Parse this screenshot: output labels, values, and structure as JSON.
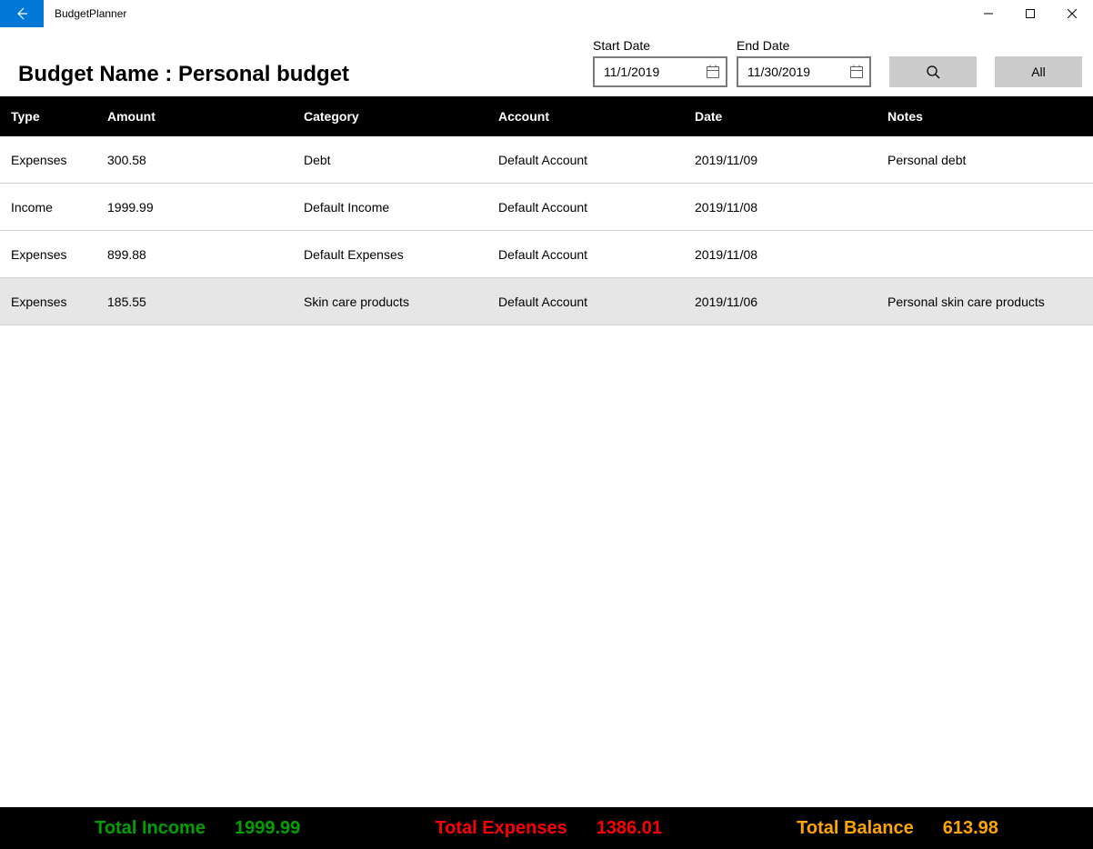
{
  "window": {
    "app_title": "BudgetPlanner"
  },
  "header": {
    "budget_name_prefix": "Budget Name : ",
    "budget_name": "Personal budget",
    "start_date_label": "Start Date",
    "end_date_label": "End Date",
    "start_date_value": "11/1/2019",
    "end_date_value": "11/30/2019",
    "all_button_label": "All"
  },
  "table": {
    "columns": {
      "type": "Type",
      "amount": "Amount",
      "category": "Category",
      "account": "Account",
      "date": "Date",
      "notes": "Notes"
    },
    "rows": [
      {
        "type": "Expenses",
        "amount": "300.58",
        "category": "Debt",
        "account": "Default Account",
        "date": "2019/11/09",
        "notes": "Personal debt",
        "selected": false
      },
      {
        "type": "Income",
        "amount": "1999.99",
        "category": "Default Income",
        "account": "Default Account",
        "date": "2019/11/08",
        "notes": "",
        "selected": false
      },
      {
        "type": "Expenses",
        "amount": "899.88",
        "category": "Default Expenses",
        "account": "Default Account",
        "date": "2019/11/08",
        "notes": "",
        "selected": false
      },
      {
        "type": "Expenses",
        "amount": "185.55",
        "category": "Skin care products",
        "account": "Default Account",
        "date": "2019/11/06",
        "notes": "Personal skin care products",
        "selected": true
      }
    ]
  },
  "footer": {
    "income_label": "Total Income",
    "income_value": "1999.99",
    "expenses_label": "Total Expenses",
    "expenses_value": "1386.01",
    "balance_label": "Total Balance",
    "balance_value": "613.98",
    "colors": {
      "income": "#00a000",
      "expenses": "#ff0000",
      "balance": "#ffa500"
    }
  },
  "styling": {
    "header_bg": "#000000",
    "selected_row_bg": "#e6e6e6",
    "row_border": "#d0d0d0",
    "button_bg": "#cccccc",
    "back_btn_bg": "#0078d7",
    "date_border": "#7a7a7a"
  }
}
